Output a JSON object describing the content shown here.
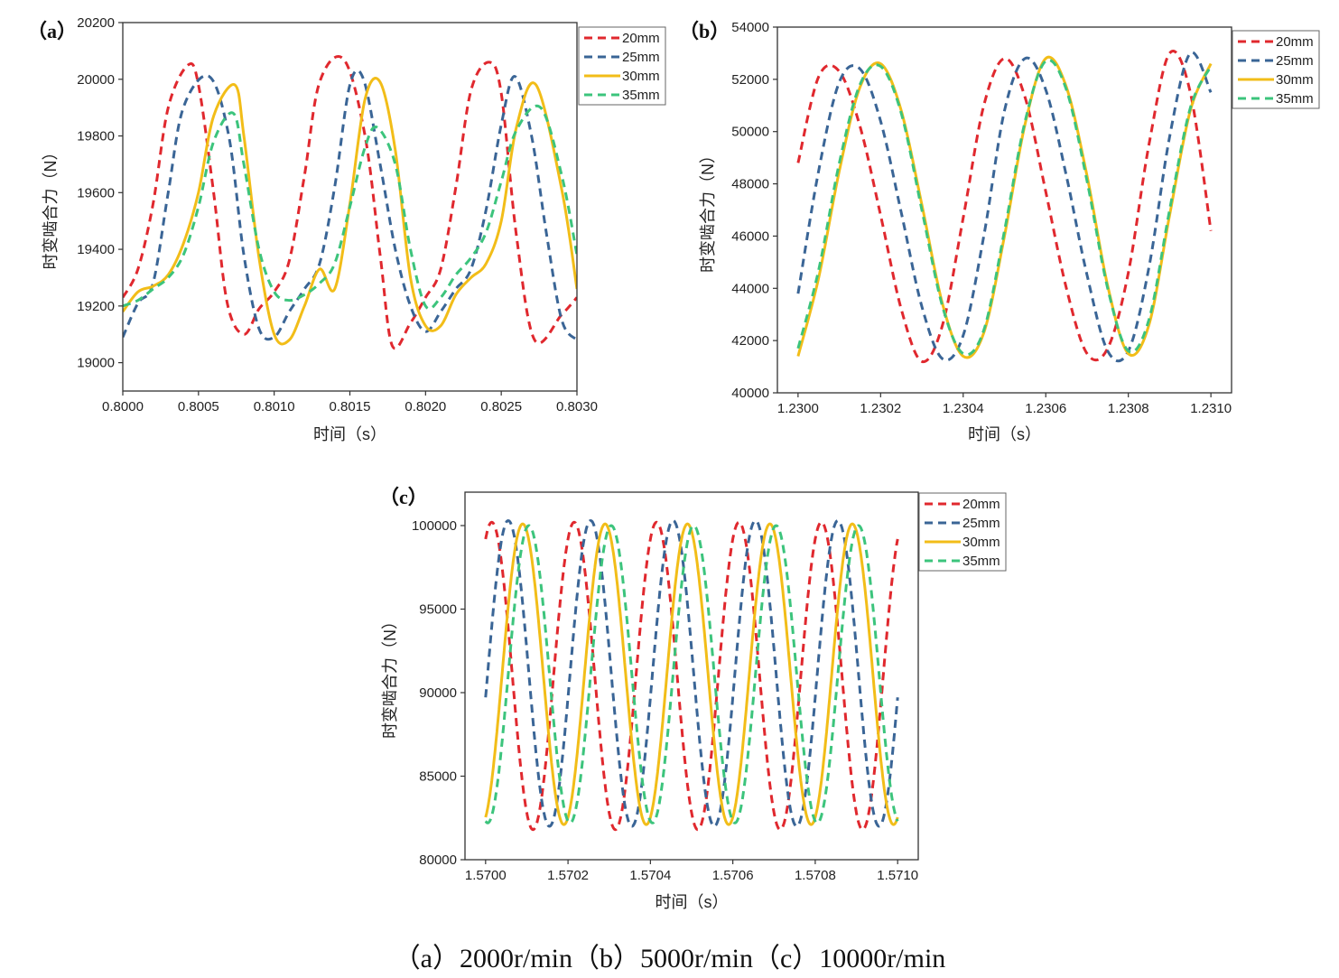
{
  "caption": "（a）2000r/min（b）5000r/min（c）10000r/min",
  "series_styles": [
    {
      "name": "20mm",
      "color": "#e0282e",
      "dash": "dashed"
    },
    {
      "name": "25mm",
      "color": "#3a6596",
      "dash": "dashed"
    },
    {
      "name": "30mm",
      "color": "#f2bd18",
      "dash": "solid"
    },
    {
      "name": "35mm",
      "color": "#3cc47c",
      "dash": "dashed"
    }
  ],
  "chart_data": [
    {
      "panel_label": "（a）",
      "type": "line",
      "xlabel": "时间（s）",
      "ylabel": "时变啮合力（N）",
      "xlim": [
        0.8,
        0.803
      ],
      "ylim": [
        18900,
        20200
      ],
      "xticks": [
        "0.8000",
        "0.8005",
        "0.8010",
        "0.8015",
        "0.8020",
        "0.8025",
        "0.8030"
      ],
      "yticks": [
        "19000",
        "19200",
        "19400",
        "19600",
        "19800",
        "20000",
        "20200"
      ],
      "legend_position": "outside-top-right",
      "series": [
        {
          "name": "20mm",
          "x": [
            0.8,
            0.8001,
            0.8002,
            0.8003,
            0.80043,
            0.8005,
            0.8006,
            0.80069,
            0.8008,
            0.8009,
            0.801,
            0.8011,
            0.8012,
            0.8013,
            0.80146,
            0.8016,
            0.8017,
            0.80178,
            0.8019,
            0.802,
            0.8021,
            0.8022,
            0.8023,
            0.80242,
            0.8025,
            0.8026,
            0.80272,
            0.8029,
            0.803
          ],
          "y": [
            19230,
            19330,
            19560,
            19900,
            20050,
            19980,
            19600,
            19210,
            19100,
            19190,
            19250,
            19360,
            19660,
            19990,
            20070,
            19800,
            19380,
            19060,
            19140,
            19230,
            19330,
            19620,
            19960,
            20060,
            19950,
            19450,
            19080,
            19170,
            19230
          ]
        },
        {
          "name": "25mm",
          "x": [
            0.8,
            0.8001,
            0.8002,
            0.8003,
            0.8004,
            0.80057,
            0.8007,
            0.8008,
            0.8009,
            0.801,
            0.8011,
            0.8012,
            0.8013,
            0.8014,
            0.8015,
            0.80159,
            0.8017,
            0.8018,
            0.8019,
            0.802,
            0.8021,
            0.8022,
            0.8023,
            0.8024,
            0.8025,
            0.80259,
            0.8027,
            0.8028,
            0.8029,
            0.803
          ],
          "y": [
            19090,
            19210,
            19280,
            19600,
            19900,
            20010,
            19800,
            19380,
            19120,
            19090,
            19180,
            19260,
            19350,
            19620,
            19980,
            20000,
            19700,
            19400,
            19200,
            19110,
            19180,
            19260,
            19330,
            19540,
            19840,
            20010,
            19800,
            19450,
            19150,
            19080
          ]
        },
        {
          "name": "30mm",
          "x": [
            0.8,
            0.8001,
            0.8002,
            0.8003,
            0.8004,
            0.8005,
            0.8006,
            0.80074,
            0.8008,
            0.8009,
            0.801,
            0.8011,
            0.8012,
            0.8013,
            0.8014,
            0.8015,
            0.8016,
            0.8017,
            0.8018,
            0.8019,
            0.802,
            0.8021,
            0.8022,
            0.8023,
            0.8024,
            0.8025,
            0.8026,
            0.80273,
            0.8029,
            0.803
          ],
          "y": [
            19180,
            19250,
            19270,
            19310,
            19420,
            19600,
            19870,
            19980,
            19800,
            19370,
            19100,
            19080,
            19200,
            19330,
            19260,
            19560,
            19930,
            19990,
            19750,
            19300,
            19130,
            19130,
            19240,
            19300,
            19350,
            19500,
            19830,
            19980,
            19610,
            19260
          ]
        },
        {
          "name": "35mm",
          "x": [
            0.8,
            0.8001,
            0.8002,
            0.8003,
            0.8004,
            0.8005,
            0.8006,
            0.80073,
            0.8008,
            0.8009,
            0.801,
            0.8011,
            0.8012,
            0.8013,
            0.8014,
            0.8015,
            0.8016,
            0.80168,
            0.8018,
            0.8019,
            0.802,
            0.8021,
            0.8022,
            0.8023,
            0.8024,
            0.8025,
            0.8026,
            0.80276,
            0.8029,
            0.803
          ],
          "y": [
            19200,
            19220,
            19260,
            19300,
            19380,
            19550,
            19780,
            19880,
            19700,
            19400,
            19250,
            19220,
            19240,
            19280,
            19350,
            19550,
            19760,
            19830,
            19700,
            19400,
            19200,
            19230,
            19310,
            19370,
            19460,
            19640,
            19820,
            19900,
            19660,
            19380
          ]
        }
      ]
    },
    {
      "panel_label": "（b）",
      "type": "line",
      "xlabel": "时间（s）",
      "ylabel": "时变啮合力（N）",
      "xlim": [
        1.22995,
        1.23105
      ],
      "ylim": [
        40000,
        54000
      ],
      "xticks": [
        "1.2300",
        "1.2302",
        "1.2304",
        "1.2306",
        "1.2308",
        "1.2310"
      ],
      "yticks": [
        "40000",
        "42000",
        "44000",
        "46000",
        "48000",
        "50000",
        "52000",
        "54000"
      ],
      "legend_position": "outside-top-right",
      "series": [
        {
          "name": "20mm",
          "x": [
            1.23,
            1.23005,
            1.2301,
            1.23015,
            1.2302,
            1.23025,
            1.2303,
            1.23035,
            1.2304,
            1.23045,
            1.2305,
            1.23055,
            1.2306,
            1.23065,
            1.2307,
            1.23075,
            1.2308,
            1.23085,
            1.2309,
            1.23095,
            1.231
          ],
          "y": [
            48800,
            52100,
            52300,
            50200,
            46800,
            43200,
            41200,
            42600,
            46700,
            51000,
            52800,
            51300,
            47700,
            44000,
            41500,
            41700,
            44600,
            49500,
            53000,
            51500,
            46200
          ]
        },
        {
          "name": "25mm",
          "x": [
            1.23,
            1.23005,
            1.2301,
            1.23015,
            1.2302,
            1.23025,
            1.2303,
            1.23035,
            1.2304,
            1.23045,
            1.2305,
            1.23055,
            1.2306,
            1.23065,
            1.2307,
            1.23075,
            1.2308,
            1.23085,
            1.2309,
            1.23095,
            1.231
          ],
          "y": [
            43800,
            48500,
            51900,
            52400,
            50400,
            46900,
            43300,
            41300,
            42200,
            46000,
            50800,
            52800,
            51600,
            48300,
            44500,
            41600,
            41600,
            44800,
            49800,
            53000,
            51500
          ]
        },
        {
          "name": "30mm",
          "x": [
            1.23,
            1.23005,
            1.2301,
            1.23015,
            1.2302,
            1.23025,
            1.2303,
            1.23035,
            1.2304,
            1.23045,
            1.2305,
            1.23055,
            1.2306,
            1.23065,
            1.2307,
            1.23075,
            1.2308,
            1.23085,
            1.2309,
            1.23095,
            1.231
          ],
          "y": [
            41400,
            44400,
            48500,
            51700,
            52600,
            50800,
            47200,
            43400,
            41400,
            42300,
            46000,
            50300,
            52800,
            51700,
            48300,
            44100,
            41500,
            42600,
            46800,
            50800,
            52600
          ]
        },
        {
          "name": "35mm",
          "x": [
            1.23,
            1.23005,
            1.2301,
            1.23015,
            1.2302,
            1.23025,
            1.2303,
            1.23035,
            1.2304,
            1.23045,
            1.2305,
            1.23055,
            1.2306,
            1.23065,
            1.2307,
            1.23075,
            1.2308,
            1.23085,
            1.2309,
            1.23095,
            1.231
          ],
          "y": [
            41700,
            44700,
            48800,
            51800,
            52500,
            50700,
            47000,
            43300,
            41500,
            42400,
            46200,
            50400,
            52700,
            51600,
            48100,
            44000,
            41600,
            42800,
            47000,
            50900,
            52500
          ]
        }
      ]
    },
    {
      "panel_label": "（c）",
      "type": "line",
      "xlabel": "时间（s）",
      "ylabel": "时变啮合力（N）",
      "xlim": [
        1.56995,
        1.57105
      ],
      "ylim": [
        80000,
        102000
      ],
      "xticks": [
        "1.5700",
        "1.5702",
        "1.5704",
        "1.5706",
        "1.5708",
        "1.5710"
      ],
      "yticks": [
        "80000",
        "85000",
        "90000",
        "95000",
        "100000"
      ],
      "legend_position": "outside-top-right",
      "waveform": {
        "period": 0.0002,
        "x_start": 1.57,
        "x_end": 1.571
      },
      "series": [
        {
          "name": "20mm",
          "peak_x": 1.570015,
          "max": 100200,
          "min": 81800
        },
        {
          "name": "25mm",
          "peak_x": 1.570055,
          "max": 100300,
          "min": 82000
        },
        {
          "name": "30mm",
          "peak_x": 1.57009,
          "max": 100100,
          "min": 82100
        },
        {
          "name": "35mm",
          "peak_x": 1.570105,
          "max": 100000,
          "min": 82200
        }
      ]
    }
  ]
}
